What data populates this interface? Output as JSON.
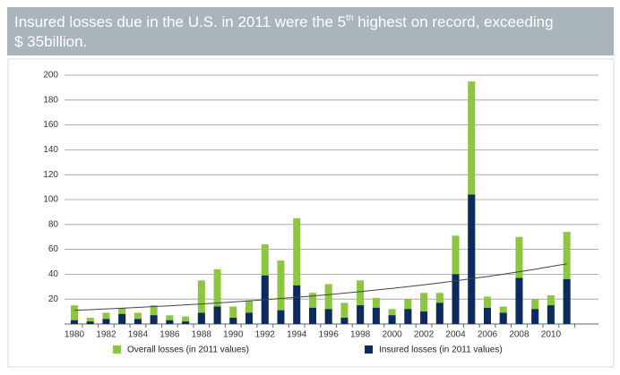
{
  "chart_data": {
    "type": "bar",
    "title": [
      "Insured losses due in the U.S. in 2011 were the 5",
      "th",
      " highest on record, exceeding",
      "$ 35billion."
    ],
    "categories": [
      "1980",
      null,
      "1982",
      null,
      "1984",
      null,
      "1986",
      null,
      "1988",
      null,
      "1990",
      null,
      "1992",
      null,
      "1994",
      null,
      "1996",
      null,
      "1998",
      null,
      "2000",
      null,
      "2002",
      null,
      "2004",
      null,
      "2006",
      null,
      "2008",
      null,
      "2010",
      null
    ],
    "series": [
      {
        "name": "Overall losses (in 2011 values)",
        "color": "#8dc63f",
        "values": [
          15,
          5,
          9,
          13,
          9,
          15,
          7,
          6,
          35,
          44,
          14,
          19,
          64,
          51,
          85,
          25,
          32,
          17,
          35,
          21,
          12,
          20,
          25,
          25,
          71,
          195,
          22,
          14,
          70,
          20,
          23,
          74
        ]
      },
      {
        "name": "Insured losses (in 2011 values)",
        "color": "#0d2a5e",
        "values": [
          3,
          2,
          4,
          8,
          4,
          7,
          3,
          2,
          9,
          14,
          5,
          9,
          39,
          11,
          31,
          13,
          12,
          5,
          15,
          13,
          7,
          12,
          10,
          17,
          40,
          104,
          13,
          9,
          37,
          12,
          15,
          36
        ]
      }
    ],
    "trend_color": "#444444",
    "trend_values": [
      11,
      11.5,
      12.1,
      12.7,
      13.3,
      14,
      14.6,
      15.4,
      16.1,
      16.9,
      17.7,
      18.6,
      19.5,
      20.5,
      21.5,
      22.5,
      23.6,
      24.8,
      26,
      27.3,
      28.6,
      30,
      31.5,
      33,
      34.7,
      36.4,
      38.1,
      40,
      42,
      44,
      46.2,
      48.4
    ],
    "ylim": [
      0,
      200
    ],
    "yticks": [
      20,
      40,
      60,
      80,
      100,
      120,
      140,
      160,
      180,
      200
    ],
    "grid": true
  }
}
